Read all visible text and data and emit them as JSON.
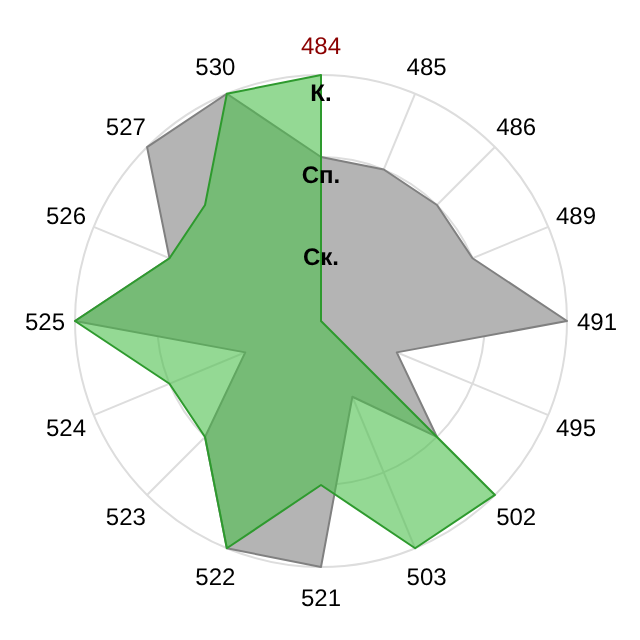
{
  "chart_data": {
    "type": "radar",
    "categories": [
      "484",
      "485",
      "486",
      "489",
      "491",
      "495",
      "502",
      "503",
      "521",
      "522",
      "523",
      "524",
      "525",
      "526",
      "527",
      "530"
    ],
    "series": [
      {
        "color": "#b4b4b4",
        "values": [
          2,
          2,
          2,
          2,
          3,
          1,
          2,
          1,
          3,
          3,
          2,
          1,
          3,
          2,
          3,
          3
        ]
      },
      {
        "color": "#4cc04c",
        "values": [
          3,
          0,
          0,
          0,
          0,
          0,
          3,
          3,
          2,
          3,
          2,
          2,
          3,
          2,
          2,
          3
        ]
      }
    ],
    "ylim": [
      0,
      3
    ],
    "yticks": [
      {
        "value": 1,
        "label": "Ск."
      },
      {
        "value": 2,
        "label": "Сп."
      },
      {
        "value": 3,
        "label": "К."
      }
    ],
    "grid": true
  }
}
